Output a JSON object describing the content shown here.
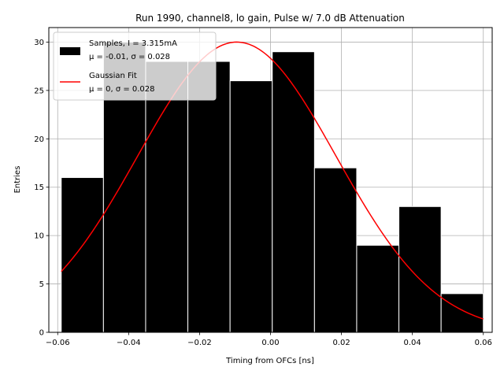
{
  "chart_data": {
    "type": "bar",
    "title": "Run 1990, channel8, lo gain, Pulse w/ 7.0 dB Attenuation",
    "xlabel": "Timing from OFCs [ns]",
    "ylabel": "Entries",
    "xlim": [
      -0.0625,
      0.0625
    ],
    "ylim": [
      0,
      31.5
    ],
    "xticks": [
      -0.06,
      -0.04,
      -0.02,
      0.0,
      0.02,
      0.04,
      0.06
    ],
    "xtick_labels": [
      "−0.06",
      "−0.04",
      "−0.02",
      "0.00",
      "0.02",
      "0.04",
      "0.06"
    ],
    "yticks": [
      0,
      5,
      10,
      15,
      20,
      25,
      30
    ],
    "ytick_labels": [
      "0",
      "5",
      "10",
      "15",
      "20",
      "25",
      "30"
    ],
    "grid": true,
    "histogram": {
      "name": "Samples, I = 3.315mA",
      "stats": "μ = -0.01, σ = 0.028",
      "bin_edges": [
        -0.059,
        -0.0471,
        -0.0352,
        -0.0233,
        -0.0114,
        0.0005,
        0.0124,
        0.0243,
        0.0362,
        0.0481,
        0.06
      ],
      "counts": [
        16,
        30,
        28,
        28,
        26,
        29,
        17,
        9,
        13,
        4
      ],
      "color": "#000000",
      "edgecolor": "#ffffff"
    },
    "fit": {
      "name": "Gaussian Fit",
      "stats": "μ = 0, σ = 0.028",
      "mu": -0.0095,
      "sigma": 0.028,
      "amplitude": 30.0,
      "x_range": [
        -0.059,
        0.06
      ],
      "color": "#ff0000"
    },
    "legend_position": "top-left"
  }
}
